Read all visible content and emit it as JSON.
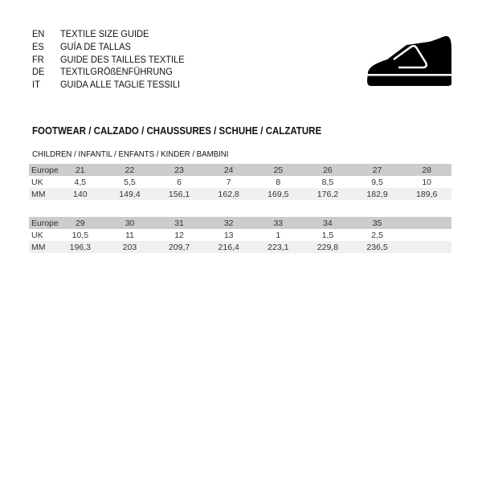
{
  "languages": [
    {
      "code": "EN",
      "title": "TEXTILE SIZE GUIDE"
    },
    {
      "code": "ES",
      "title": "GUÍA DE TALLAS"
    },
    {
      "code": "FR",
      "title": "GUIDE DES TAILLES TEXTILE"
    },
    {
      "code": "DE",
      "title": "TEXTILGRÖßENFÜHRUNG"
    },
    {
      "code": "IT",
      "title": "GUIDA ALLE TAGLIE TESSILI"
    }
  ],
  "icon": "shoe-icon",
  "section_title": "FOOTWEAR / CALZADO / CHAUSSURES / SCHUHE / CALZATURE",
  "subsection_title": "CHILDREN / INFANTIL / ENFANTS / KINDER / BAMBINI",
  "tables": [
    {
      "rows": [
        {
          "label": "Europe",
          "values": [
            "21",
            "22",
            "23",
            "24",
            "25",
            "26",
            "27",
            "28"
          ]
        },
        {
          "label": "UK",
          "values": [
            "4,5",
            "5,5",
            "6",
            "7",
            "8",
            "8,5",
            "9,5",
            "10"
          ]
        },
        {
          "label": "MM",
          "values": [
            "140",
            "149,4",
            "156,1",
            "162,8",
            "169,5",
            "176,2",
            "182,9",
            "189,6"
          ]
        }
      ]
    },
    {
      "rows": [
        {
          "label": "Europe",
          "values": [
            "29",
            "30",
            "31",
            "32",
            "33",
            "34",
            "35",
            ""
          ]
        },
        {
          "label": "UK",
          "values": [
            "10,5",
            "11",
            "12",
            "13",
            "1",
            "1,5",
            "2,5",
            ""
          ]
        },
        {
          "label": "MM",
          "values": [
            "196,3",
            "203",
            "209,7",
            "216,4",
            "223,1",
            "229,8",
            "236,5",
            ""
          ]
        }
      ]
    }
  ]
}
